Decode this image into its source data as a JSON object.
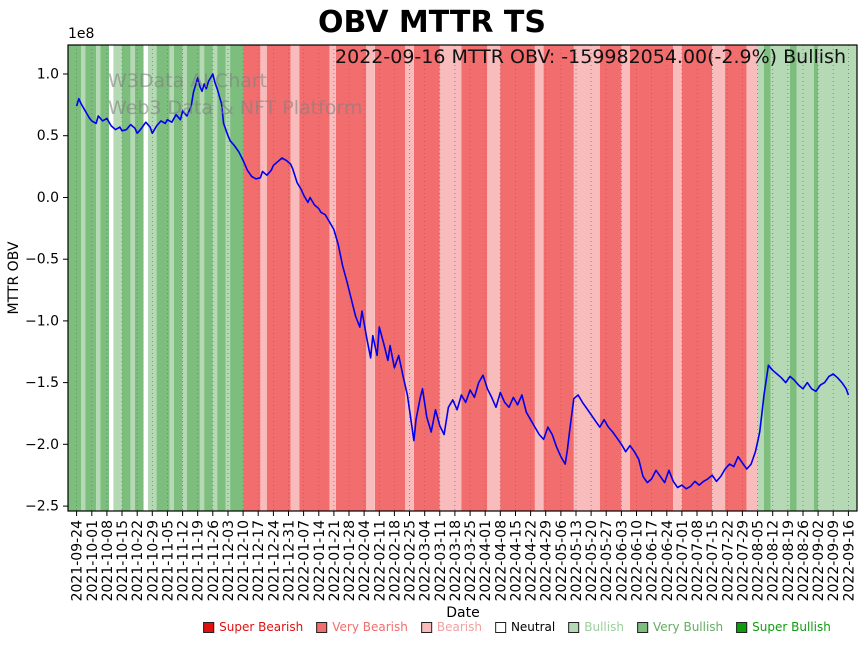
{
  "annotation": "2022-09-16 MTTR OBV: -159982054.00(-2.9%) Bullish",
  "watermark": {
    "line1": "W3Data AI Chart",
    "line2": "Web3 Data & NFT Platform"
  },
  "chart_data": {
    "type": "line",
    "title": "OBV MTTR TS",
    "xlabel": "Date",
    "ylabel": "MTTR OBV",
    "y_offset_label": "1e8",
    "y_unit": "1e8",
    "ylim": [
      -2.54,
      1.235
    ],
    "y_ticks": [
      1.0,
      0.5,
      0.0,
      -0.5,
      -1.0,
      -1.5,
      -2.0,
      -2.5
    ],
    "x_tick_interval_days": 7,
    "x_tick_labels": [
      "2021-09-24",
      "2021-10-01",
      "2021-10-08",
      "2021-10-15",
      "2021-10-22",
      "2021-10-29",
      "2021-11-05",
      "2021-11-12",
      "2021-11-19",
      "2021-11-26",
      "2021-12-03",
      "2021-12-10",
      "2021-12-17",
      "2021-12-24",
      "2021-12-31",
      "2022-01-07",
      "2022-01-14",
      "2022-01-21",
      "2022-01-28",
      "2022-02-04",
      "2022-02-11",
      "2022-02-18",
      "2022-02-25",
      "2022-03-04",
      "2022-03-11",
      "2022-03-18",
      "2022-03-25",
      "2022-04-01",
      "2022-04-08",
      "2022-04-15",
      "2022-04-22",
      "2022-04-29",
      "2022-05-06",
      "2022-05-13",
      "2022-05-20",
      "2022-05-27",
      "2022-06-03",
      "2022-06-10",
      "2022-06-17",
      "2022-06-24",
      "2022-07-01",
      "2022-07-08",
      "2022-07-15",
      "2022-07-22",
      "2022-07-29",
      "2022-08-05",
      "2022-08-12",
      "2022-08-19",
      "2022-08-26",
      "2022-09-02",
      "2022-09-09",
      "2022-09-16"
    ],
    "grid": {
      "vertical": true,
      "style": "dotted",
      "color": "#777777"
    },
    "series": [
      {
        "name": "MTTR OBV",
        "color": "#0000ee",
        "points": [
          [
            0,
            0.74
          ],
          [
            1,
            0.8
          ],
          [
            2,
            0.76
          ],
          [
            4,
            0.7
          ],
          [
            6,
            0.64
          ],
          [
            7,
            0.62
          ],
          [
            9,
            0.6
          ],
          [
            10,
            0.66
          ],
          [
            12,
            0.62
          ],
          [
            14,
            0.64
          ],
          [
            16,
            0.58
          ],
          [
            18,
            0.55
          ],
          [
            20,
            0.57
          ],
          [
            21,
            0.54
          ],
          [
            23,
            0.55
          ],
          [
            25,
            0.59
          ],
          [
            27,
            0.56
          ],
          [
            28,
            0.52
          ],
          [
            30,
            0.56
          ],
          [
            32,
            0.61
          ],
          [
            34,
            0.57
          ],
          [
            35,
            0.52
          ],
          [
            37,
            0.58
          ],
          [
            39,
            0.62
          ],
          [
            41,
            0.6
          ],
          [
            42,
            0.63
          ],
          [
            44,
            0.61
          ],
          [
            46,
            0.67
          ],
          [
            48,
            0.63
          ],
          [
            49,
            0.7
          ],
          [
            51,
            0.66
          ],
          [
            53,
            0.74
          ],
          [
            54,
            0.85
          ],
          [
            56,
            0.97
          ],
          [
            57,
            0.9
          ],
          [
            58,
            0.86
          ],
          [
            59,
            0.92
          ],
          [
            60,
            0.88
          ],
          [
            61,
            0.94
          ],
          [
            63,
            1.0
          ],
          [
            64,
            0.93
          ],
          [
            65,
            0.88
          ],
          [
            66,
            0.82
          ],
          [
            67,
            0.76
          ],
          [
            68,
            0.6
          ],
          [
            69,
            0.55
          ],
          [
            70,
            0.5
          ],
          [
            71,
            0.46
          ],
          [
            73,
            0.42
          ],
          [
            75,
            0.37
          ],
          [
            77,
            0.3
          ],
          [
            78,
            0.26
          ],
          [
            79,
            0.22
          ],
          [
            81,
            0.17
          ],
          [
            83,
            0.15
          ],
          [
            85,
            0.16
          ],
          [
            86,
            0.21
          ],
          [
            88,
            0.18
          ],
          [
            90,
            0.22
          ],
          [
            91,
            0.26
          ],
          [
            93,
            0.29
          ],
          [
            95,
            0.32
          ],
          [
            97,
            0.3
          ],
          [
            99,
            0.27
          ],
          [
            100,
            0.23
          ],
          [
            102,
            0.12
          ],
          [
            104,
            0.06
          ],
          [
            105,
            0.02
          ],
          [
            107,
            -0.04
          ],
          [
            108,
            0.0
          ],
          [
            110,
            -0.06
          ],
          [
            112,
            -0.09
          ],
          [
            113,
            -0.12
          ],
          [
            115,
            -0.14
          ],
          [
            117,
            -0.2
          ],
          [
            119,
            -0.26
          ],
          [
            121,
            -0.38
          ],
          [
            123,
            -0.55
          ],
          [
            125,
            -0.68
          ],
          [
            127,
            -0.82
          ],
          [
            129,
            -0.96
          ],
          [
            131,
            -1.05
          ],
          [
            132,
            -0.92
          ],
          [
            134,
            -1.12
          ],
          [
            136,
            -1.3
          ],
          [
            137,
            -1.12
          ],
          [
            139,
            -1.28
          ],
          [
            140,
            -1.05
          ],
          [
            142,
            -1.18
          ],
          [
            144,
            -1.32
          ],
          [
            145,
            -1.2
          ],
          [
            147,
            -1.38
          ],
          [
            149,
            -1.28
          ],
          [
            151,
            -1.45
          ],
          [
            153,
            -1.6
          ],
          [
            154,
            -1.72
          ],
          [
            156,
            -1.97
          ],
          [
            157,
            -1.8
          ],
          [
            159,
            -1.62
          ],
          [
            160,
            -1.55
          ],
          [
            162,
            -1.78
          ],
          [
            164,
            -1.9
          ],
          [
            166,
            -1.72
          ],
          [
            168,
            -1.85
          ],
          [
            170,
            -1.92
          ],
          [
            172,
            -1.7
          ],
          [
            174,
            -1.64
          ],
          [
            176,
            -1.72
          ],
          [
            178,
            -1.6
          ],
          [
            180,
            -1.66
          ],
          [
            182,
            -1.56
          ],
          [
            184,
            -1.62
          ],
          [
            186,
            -1.5
          ],
          [
            188,
            -1.44
          ],
          [
            190,
            -1.55
          ],
          [
            192,
            -1.62
          ],
          [
            194,
            -1.7
          ],
          [
            196,
            -1.58
          ],
          [
            198,
            -1.66
          ],
          [
            200,
            -1.7
          ],
          [
            202,
            -1.62
          ],
          [
            204,
            -1.68
          ],
          [
            206,
            -1.6
          ],
          [
            208,
            -1.74
          ],
          [
            210,
            -1.8
          ],
          [
            212,
            -1.86
          ],
          [
            214,
            -1.92
          ],
          [
            216,
            -1.96
          ],
          [
            218,
            -1.86
          ],
          [
            220,
            -1.92
          ],
          [
            222,
            -2.02
          ],
          [
            224,
            -2.1
          ],
          [
            226,
            -2.16
          ],
          [
            227,
            -2.05
          ],
          [
            228,
            -1.9
          ],
          [
            230,
            -1.63
          ],
          [
            232,
            -1.6
          ],
          [
            234,
            -1.66
          ],
          [
            236,
            -1.71
          ],
          [
            238,
            -1.76
          ],
          [
            240,
            -1.81
          ],
          [
            242,
            -1.86
          ],
          [
            244,
            -1.8
          ],
          [
            246,
            -1.86
          ],
          [
            248,
            -1.9
          ],
          [
            250,
            -1.95
          ],
          [
            252,
            -2.0
          ],
          [
            254,
            -2.06
          ],
          [
            256,
            -2.01
          ],
          [
            258,
            -2.06
          ],
          [
            260,
            -2.12
          ],
          [
            262,
            -2.26
          ],
          [
            264,
            -2.31
          ],
          [
            266,
            -2.28
          ],
          [
            268,
            -2.21
          ],
          [
            270,
            -2.26
          ],
          [
            272,
            -2.31
          ],
          [
            274,
            -2.21
          ],
          [
            276,
            -2.3
          ],
          [
            278,
            -2.35
          ],
          [
            280,
            -2.33
          ],
          [
            282,
            -2.36
          ],
          [
            284,
            -2.34
          ],
          [
            286,
            -2.3
          ],
          [
            288,
            -2.33
          ],
          [
            290,
            -2.3
          ],
          [
            292,
            -2.28
          ],
          [
            294,
            -2.25
          ],
          [
            296,
            -2.3
          ],
          [
            298,
            -2.26
          ],
          [
            300,
            -2.2
          ],
          [
            302,
            -2.16
          ],
          [
            304,
            -2.18
          ],
          [
            306,
            -2.1
          ],
          [
            308,
            -2.15
          ],
          [
            310,
            -2.2
          ],
          [
            312,
            -2.16
          ],
          [
            314,
            -2.06
          ],
          [
            315,
            -1.98
          ],
          [
            316,
            -1.9
          ],
          [
            317,
            -1.75
          ],
          [
            318,
            -1.6
          ],
          [
            319,
            -1.48
          ],
          [
            320,
            -1.36
          ],
          [
            322,
            -1.4
          ],
          [
            324,
            -1.43
          ],
          [
            326,
            -1.46
          ],
          [
            328,
            -1.5
          ],
          [
            330,
            -1.45
          ],
          [
            332,
            -1.48
          ],
          [
            334,
            -1.52
          ],
          [
            336,
            -1.55
          ],
          [
            338,
            -1.5
          ],
          [
            340,
            -1.55
          ],
          [
            342,
            -1.57
          ],
          [
            344,
            -1.52
          ],
          [
            346,
            -1.5
          ],
          [
            348,
            -1.45
          ],
          [
            350,
            -1.43
          ],
          [
            352,
            -1.46
          ],
          [
            354,
            -1.5
          ],
          [
            356,
            -1.55
          ],
          [
            357,
            -1.6
          ]
        ]
      }
    ],
    "sentiment_colors": {
      "super_bearish": "#e01010",
      "very_bearish": "#f26e6e",
      "bearish": "#f9bcbc",
      "neutral": "#ffffff",
      "bullish": "#b4d9b4",
      "very_bullish": "#7dbd7d",
      "super_bullish": "#0f9c0f"
    },
    "bands": [
      {
        "start": -4,
        "end": 2,
        "sentiment": "very_bullish"
      },
      {
        "start": 2,
        "end": 4,
        "sentiment": "bullish"
      },
      {
        "start": 4,
        "end": 9,
        "sentiment": "very_bullish"
      },
      {
        "start": 9,
        "end": 11,
        "sentiment": "bullish"
      },
      {
        "start": 11,
        "end": 15,
        "sentiment": "very_bullish"
      },
      {
        "start": 15,
        "end": 17,
        "sentiment": "neutral"
      },
      {
        "start": 17,
        "end": 21,
        "sentiment": "bullish"
      },
      {
        "start": 21,
        "end": 25,
        "sentiment": "very_bullish"
      },
      {
        "start": 25,
        "end": 27,
        "sentiment": "bullish"
      },
      {
        "start": 27,
        "end": 31,
        "sentiment": "very_bullish"
      },
      {
        "start": 31,
        "end": 33,
        "sentiment": "neutral"
      },
      {
        "start": 33,
        "end": 37,
        "sentiment": "bullish"
      },
      {
        "start": 37,
        "end": 43,
        "sentiment": "very_bullish"
      },
      {
        "start": 43,
        "end": 45,
        "sentiment": "bullish"
      },
      {
        "start": 45,
        "end": 49,
        "sentiment": "very_bullish"
      },
      {
        "start": 49,
        "end": 51,
        "sentiment": "bullish"
      },
      {
        "start": 51,
        "end": 57,
        "sentiment": "very_bullish"
      },
      {
        "start": 57,
        "end": 59,
        "sentiment": "bullish"
      },
      {
        "start": 59,
        "end": 63,
        "sentiment": "very_bullish"
      },
      {
        "start": 63,
        "end": 65,
        "sentiment": "bullish"
      },
      {
        "start": 65,
        "end": 69,
        "sentiment": "very_bullish"
      },
      {
        "start": 69,
        "end": 71,
        "sentiment": "bullish"
      },
      {
        "start": 71,
        "end": 77,
        "sentiment": "very_bullish"
      },
      {
        "start": 77,
        "end": 85,
        "sentiment": "very_bearish"
      },
      {
        "start": 85,
        "end": 88,
        "sentiment": "bearish"
      },
      {
        "start": 88,
        "end": 99,
        "sentiment": "very_bearish"
      },
      {
        "start": 99,
        "end": 103,
        "sentiment": "bearish"
      },
      {
        "start": 103,
        "end": 117,
        "sentiment": "very_bearish"
      },
      {
        "start": 117,
        "end": 120,
        "sentiment": "bearish"
      },
      {
        "start": 120,
        "end": 134,
        "sentiment": "very_bearish"
      },
      {
        "start": 134,
        "end": 138,
        "sentiment": "bearish"
      },
      {
        "start": 138,
        "end": 152,
        "sentiment": "very_bearish"
      },
      {
        "start": 152,
        "end": 156,
        "sentiment": "bearish"
      },
      {
        "start": 156,
        "end": 168,
        "sentiment": "very_bearish"
      },
      {
        "start": 168,
        "end": 178,
        "sentiment": "bearish"
      },
      {
        "start": 178,
        "end": 190,
        "sentiment": "very_bearish"
      },
      {
        "start": 190,
        "end": 196,
        "sentiment": "bearish"
      },
      {
        "start": 196,
        "end": 212,
        "sentiment": "very_bearish"
      },
      {
        "start": 212,
        "end": 216,
        "sentiment": "bearish"
      },
      {
        "start": 216,
        "end": 230,
        "sentiment": "very_bearish"
      },
      {
        "start": 230,
        "end": 242,
        "sentiment": "bearish"
      },
      {
        "start": 242,
        "end": 252,
        "sentiment": "very_bearish"
      },
      {
        "start": 252,
        "end": 256,
        "sentiment": "bearish"
      },
      {
        "start": 256,
        "end": 276,
        "sentiment": "very_bearish"
      },
      {
        "start": 276,
        "end": 280,
        "sentiment": "bearish"
      },
      {
        "start": 280,
        "end": 294,
        "sentiment": "very_bearish"
      },
      {
        "start": 294,
        "end": 300,
        "sentiment": "bearish"
      },
      {
        "start": 300,
        "end": 310,
        "sentiment": "very_bearish"
      },
      {
        "start": 310,
        "end": 315,
        "sentiment": "bearish"
      },
      {
        "start": 315,
        "end": 318,
        "sentiment": "bullish"
      },
      {
        "start": 318,
        "end": 321,
        "sentiment": "very_bullish"
      },
      {
        "start": 321,
        "end": 330,
        "sentiment": "bullish"
      },
      {
        "start": 330,
        "end": 333,
        "sentiment": "very_bullish"
      },
      {
        "start": 333,
        "end": 341,
        "sentiment": "bullish"
      },
      {
        "start": 341,
        "end": 343,
        "sentiment": "very_bullish"
      },
      {
        "start": 343,
        "end": 361,
        "sentiment": "bullish"
      }
    ],
    "legend": [
      {
        "key": "super_bearish",
        "label": "Super Bearish",
        "text_color": "#e01010"
      },
      {
        "key": "very_bearish",
        "label": "Very Bearish",
        "text_color": "#f26e6e"
      },
      {
        "key": "bearish",
        "label": "Bearish",
        "text_color": "#f3a0a0"
      },
      {
        "key": "neutral",
        "label": "Neutral",
        "text_color": "#000000"
      },
      {
        "key": "bullish",
        "label": "Bullish",
        "text_color": "#9cce9c"
      },
      {
        "key": "very_bullish",
        "label": "Very Bullish",
        "text_color": "#63ae63"
      },
      {
        "key": "super_bullish",
        "label": "Super Bullish",
        "text_color": "#0f9c0f"
      }
    ]
  }
}
